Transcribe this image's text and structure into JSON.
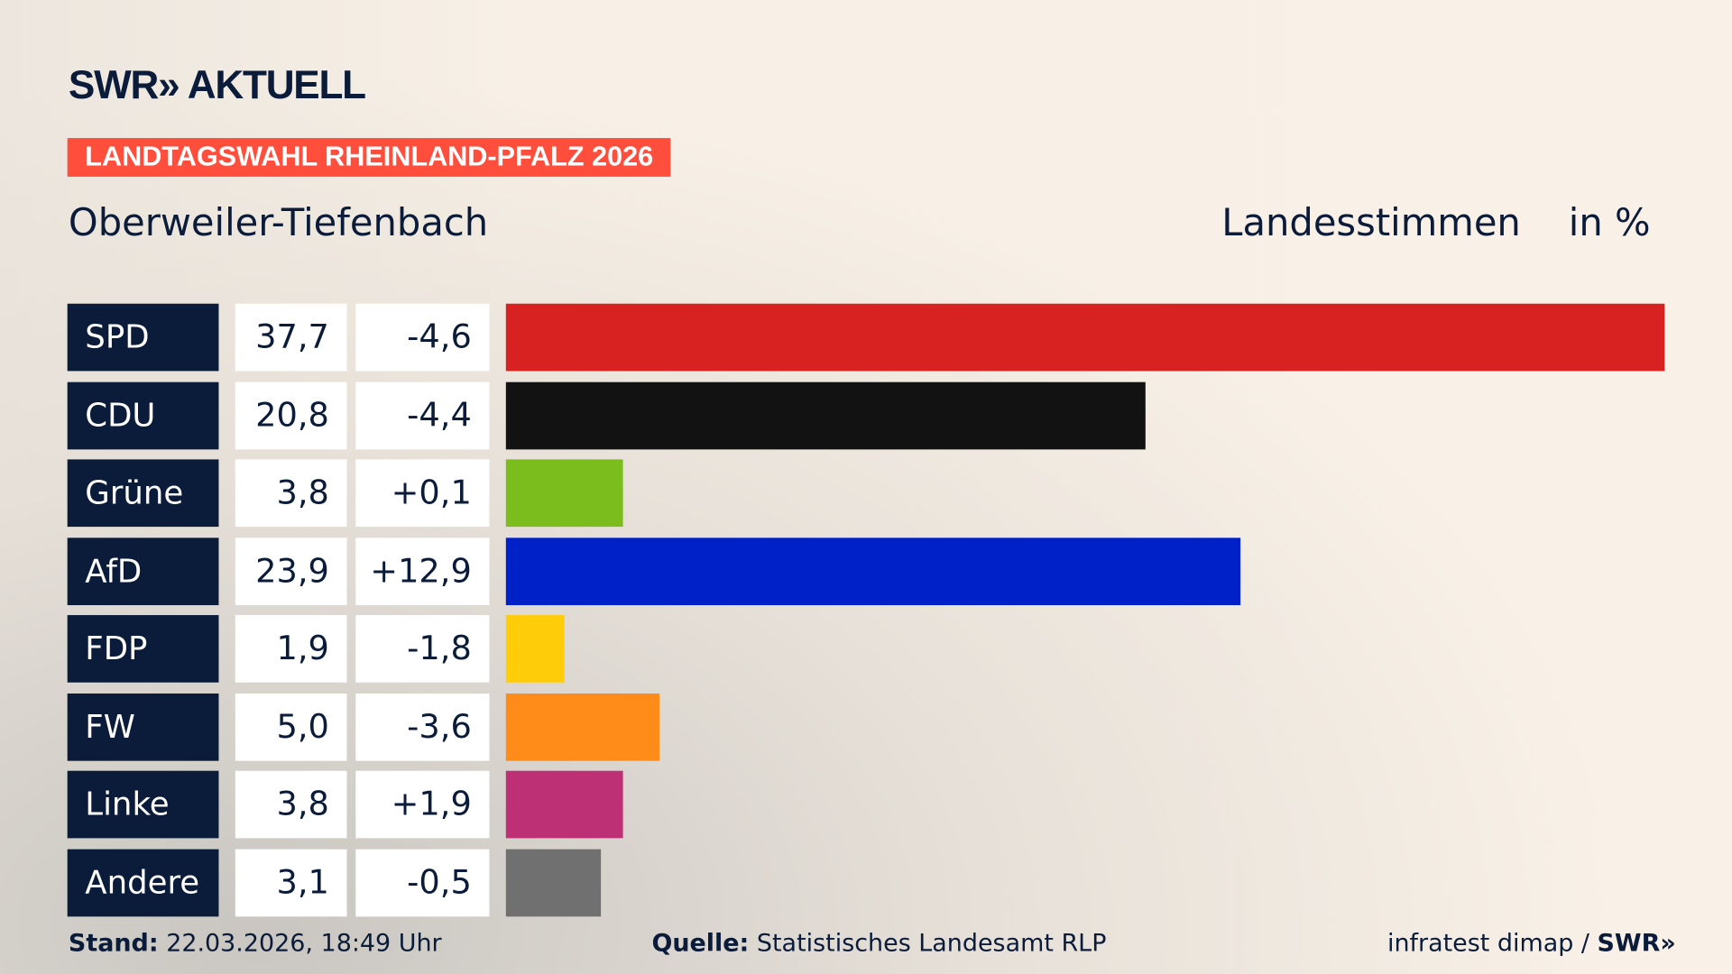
{
  "header": {
    "logo": "SWR» AKTUELL",
    "banner": "LANDTAGSWAHL RHEINLAND-PFALZ 2026",
    "place": "Oberweiler-Tiefenbach",
    "metric": "Landesstimmen",
    "unit": "in %"
  },
  "chart_data": {
    "type": "bar",
    "orientation": "horizontal",
    "xlim": [
      0,
      37.7
    ],
    "categories": [
      "SPD",
      "CDU",
      "Grüne",
      "AfD",
      "FDP",
      "FW",
      "Linke",
      "Andere"
    ],
    "values": [
      37.7,
      20.8,
      3.8,
      23.9,
      1.9,
      5.0,
      3.8,
      3.1
    ],
    "value_labels": [
      "37,7",
      "20,8",
      "3,8",
      "23,9",
      "1,9",
      "5,0",
      "3,8",
      "3,1"
    ],
    "diff_labels": [
      "-4,6",
      "-4,4",
      "+0,1",
      "+12,9",
      "-1,8",
      "-3,6",
      "+1,9",
      "-0,5"
    ],
    "colors": [
      "#d82121",
      "#121212",
      "#7abd1c",
      "#0020c8",
      "#ffcc0a",
      "#ff8c19",
      "#be3075",
      "#707070"
    ]
  },
  "footer": {
    "stand_label": "Stand:",
    "stand": "22.03.2026, 18:49 Uhr",
    "source_label": "Quelle:",
    "source": "Statistisches Landesamt RLP",
    "credit": "infratest dimap / ",
    "credit_brand": "SWR»"
  }
}
